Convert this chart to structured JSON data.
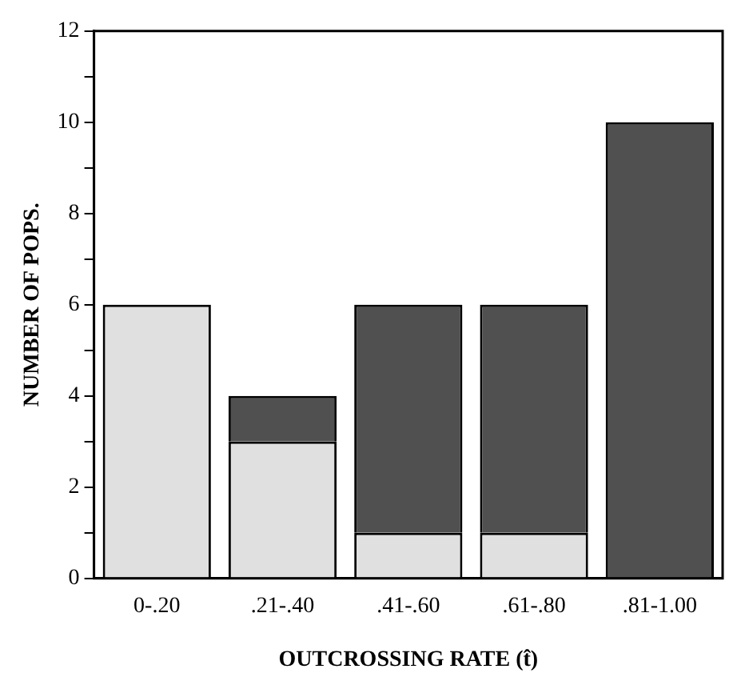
{
  "chart_data": {
    "type": "bar",
    "stacked": true,
    "xlabel": "OUTCROSSING RATE (t̂)",
    "ylabel": "NUMBER OF POPS.",
    "categories": [
      "0-.20",
      ".21-.40",
      ".41-.60",
      ".61-.80",
      ".81-1.00"
    ],
    "series": [
      {
        "color": "#e0e0e0",
        "values": [
          6,
          3,
          1,
          1,
          0
        ]
      },
      {
        "color": "#505050",
        "values": [
          0,
          1,
          5,
          5,
          10
        ]
      }
    ],
    "ylim": [
      0,
      12
    ],
    "yticks": [
      0,
      {
        "value": 1,
        "label": null
      },
      2,
      {
        "value": 3,
        "label": null
      },
      4,
      {
        "value": 5,
        "label": null
      },
      6,
      {
        "value": 7,
        "label": null
      },
      8,
      {
        "value": 9,
        "label": null
      },
      10,
      {
        "value": 11,
        "label": null
      },
      12
    ],
    "grid": false,
    "legend": false
  }
}
